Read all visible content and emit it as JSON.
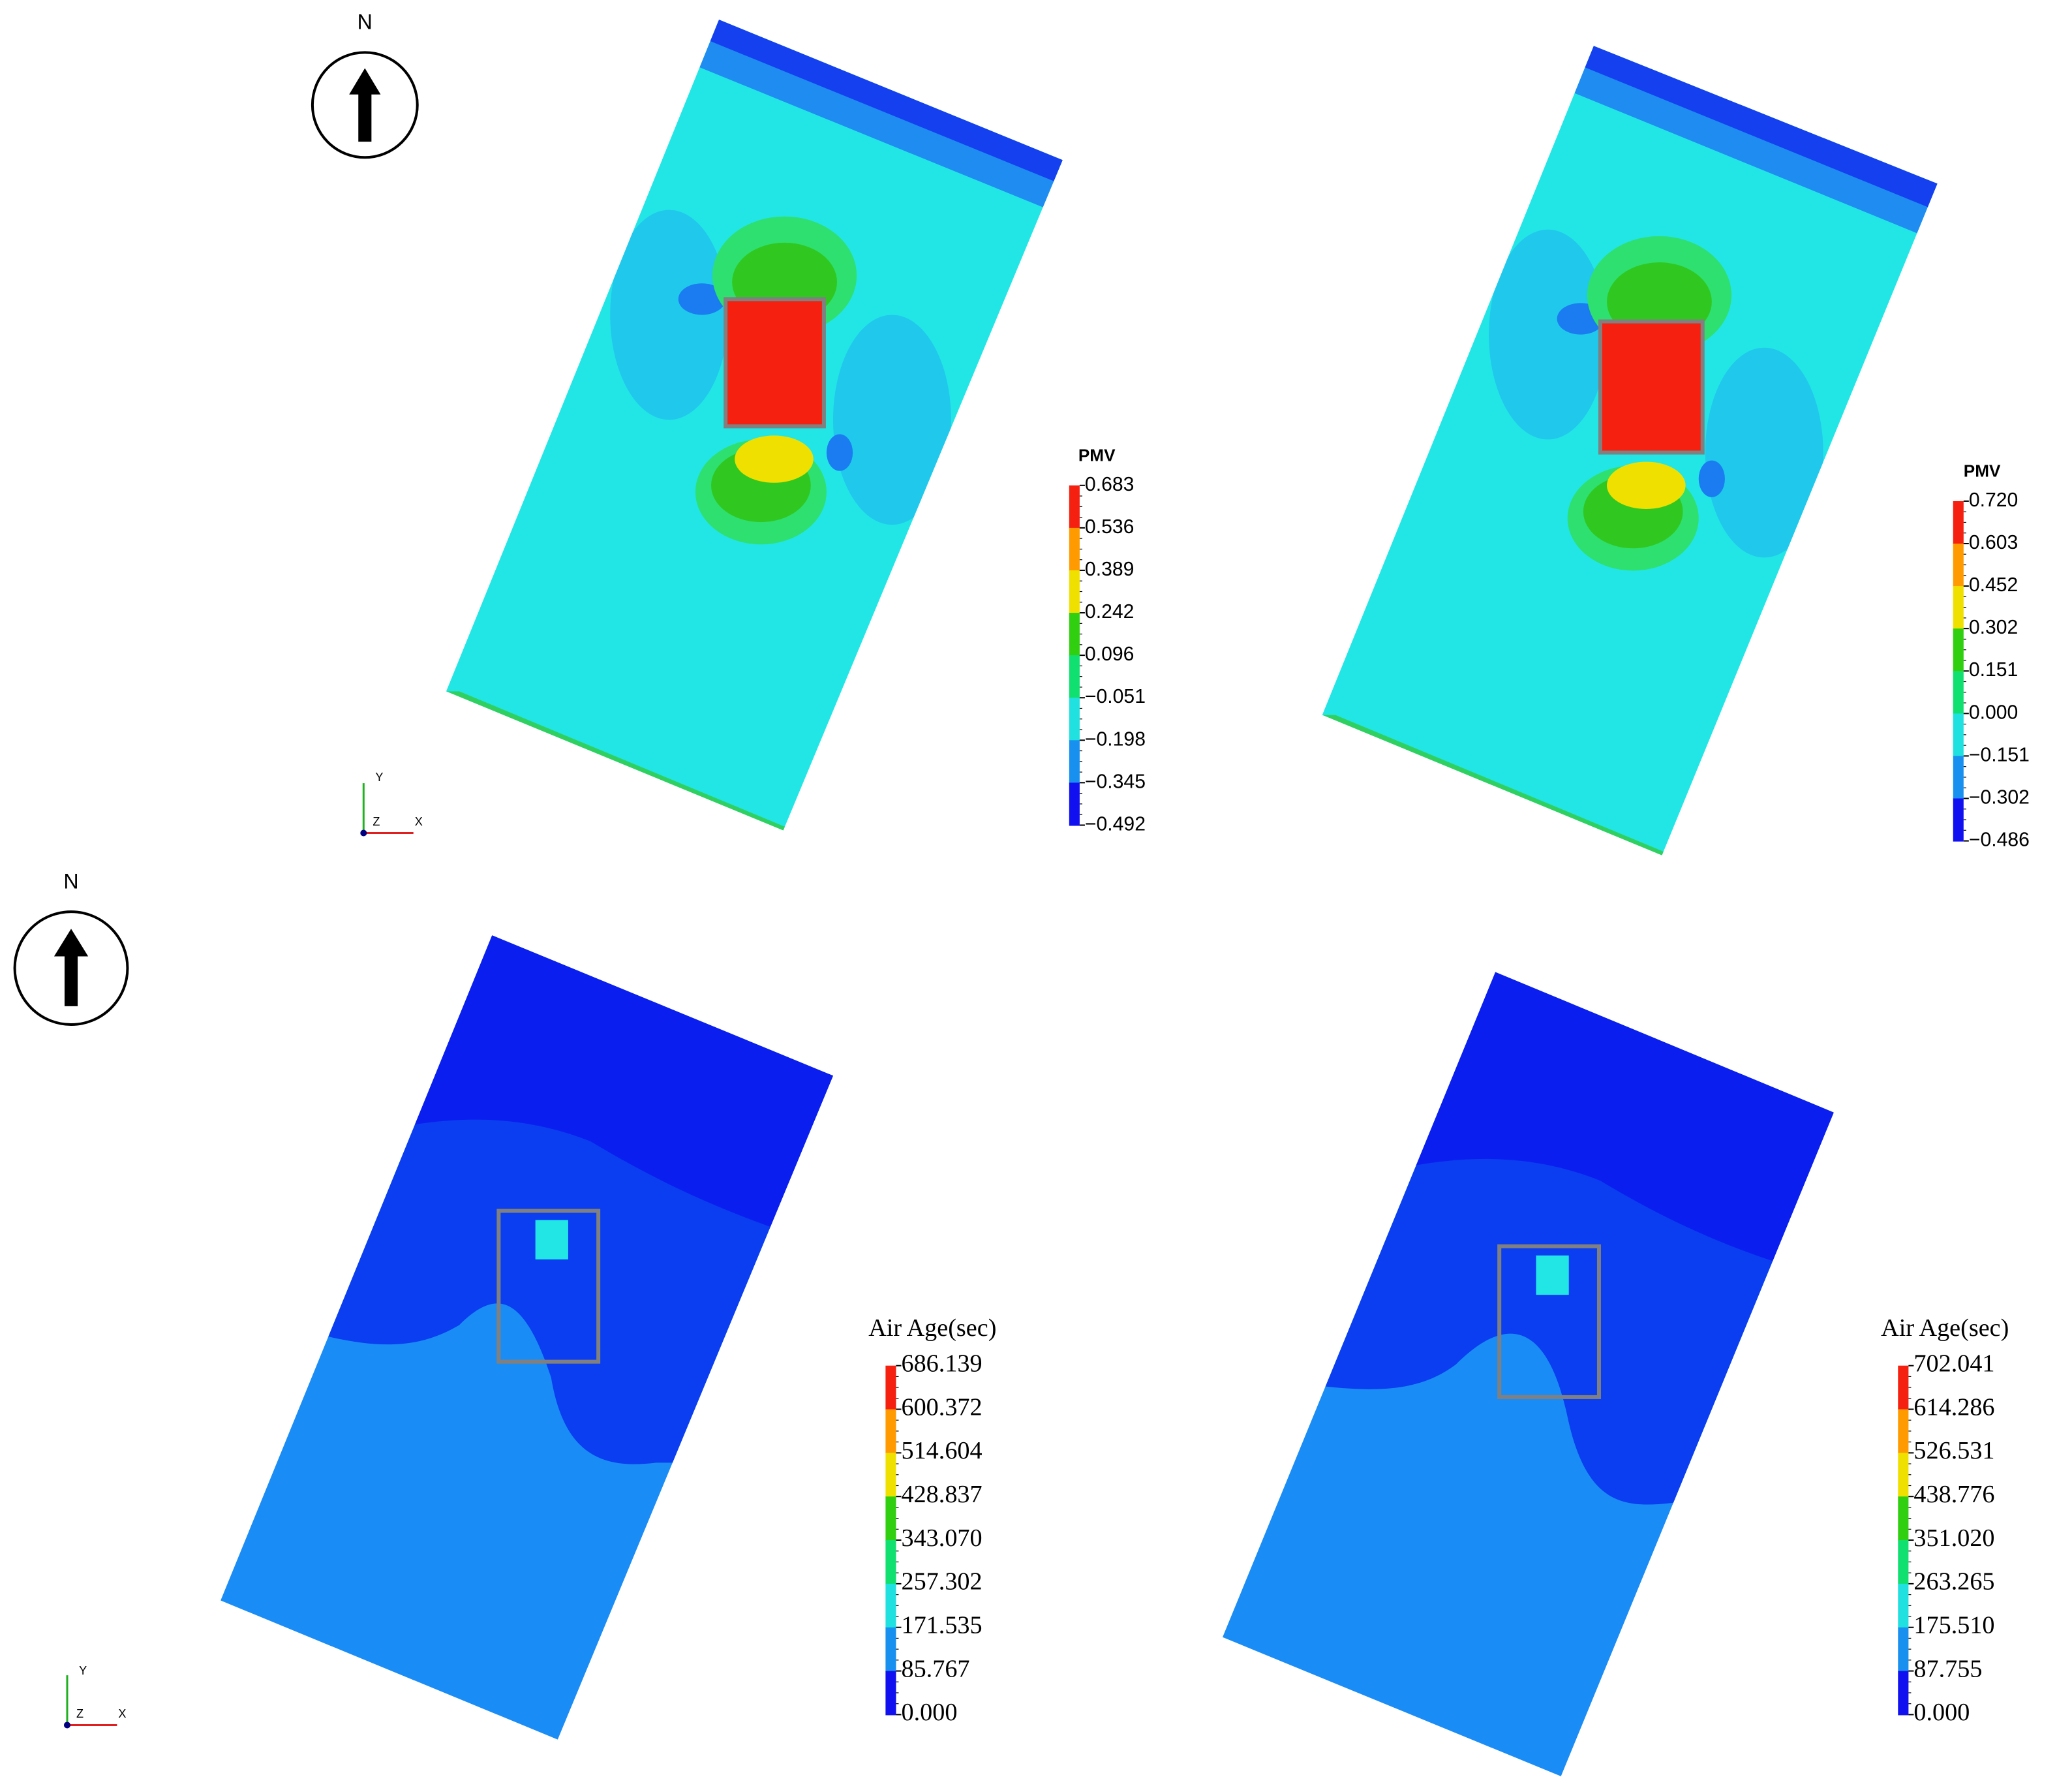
{
  "compass_label": "N",
  "axis_labels": {
    "y": "Y",
    "z": "Z",
    "x": "X"
  },
  "panels": [
    {
      "legend_title": "PMV",
      "legend_labels": [
        "0.683",
        "0.536",
        "0.389",
        "0.242",
        "0.096",
        "−0.051",
        "−0.198",
        "−0.345",
        "−0.492"
      ]
    },
    {
      "legend_title": "PMV",
      "legend_labels": [
        "0.720",
        "0.603",
        "0.452",
        "0.302",
        "0.151",
        "0.000",
        "−0.151",
        "−0.302",
        "−0.486"
      ]
    },
    {
      "legend_title": "Air Age(sec)",
      "legend_labels": [
        "686.139",
        "600.372",
        "514.604",
        "428.837",
        "343.070",
        "257.302",
        "171.535",
        "85.767",
        "0.000"
      ]
    },
    {
      "legend_title": "Air Age(sec)",
      "legend_labels": [
        "702.041",
        "614.286",
        "526.531",
        "438.776",
        "351.020",
        "263.265",
        "175.510",
        "87.755",
        "0.000"
      ]
    }
  ]
}
